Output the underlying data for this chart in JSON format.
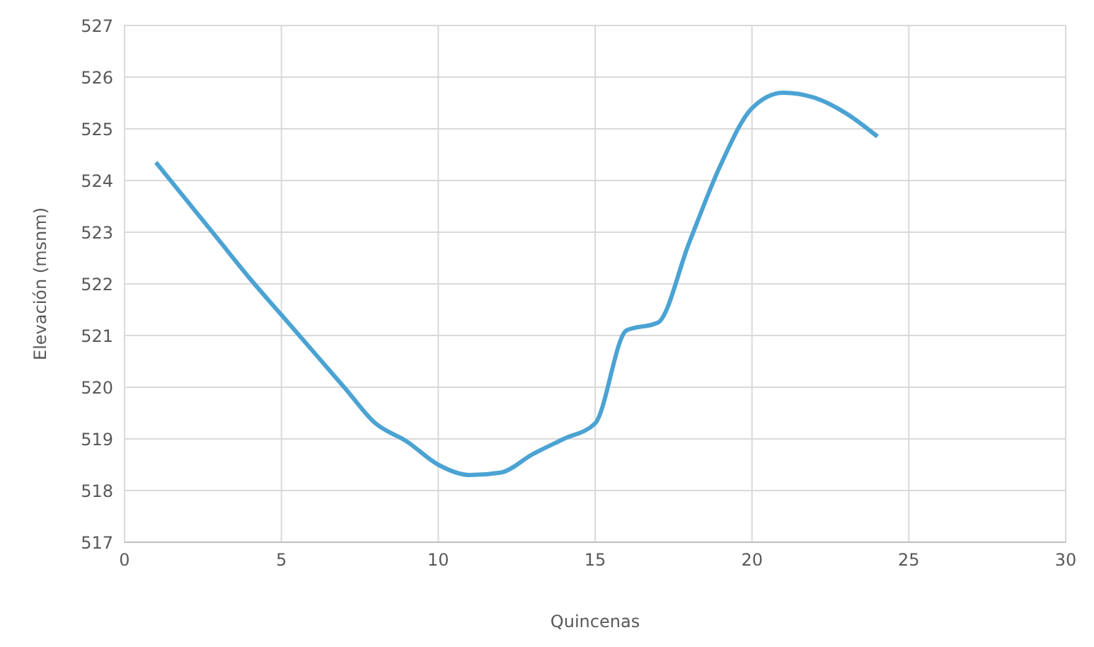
{
  "chart_data": {
    "type": "line",
    "xlabel": "Quincenas",
    "ylabel": "Elevación (msnm)",
    "x": [
      1,
      2,
      3,
      4,
      5,
      6,
      7,
      8,
      9,
      10,
      11,
      12,
      13,
      14,
      15,
      16,
      17,
      18,
      19,
      20,
      21,
      22,
      23,
      24
    ],
    "series": [
      {
        "color": "#4ba3d3",
        "values": [
          524.35,
          523.6,
          522.85,
          522.1,
          521.4,
          520.7,
          520.0,
          519.3,
          518.95,
          518.5,
          518.3,
          518.35,
          518.7,
          519.0,
          519.3,
          521.1,
          521.25,
          522.8,
          524.3,
          525.4,
          525.7,
          525.6,
          525.3,
          524.85
        ]
      }
    ],
    "xlim": [
      0,
      30
    ],
    "xticks": [
      0,
      5,
      10,
      15,
      20,
      25,
      30
    ],
    "ylim": [
      517,
      527
    ],
    "yticks": [
      517,
      518,
      519,
      520,
      521,
      522,
      523,
      524,
      525,
      526,
      527
    ],
    "grid": true,
    "marker": "none",
    "line_style": "solid"
  }
}
